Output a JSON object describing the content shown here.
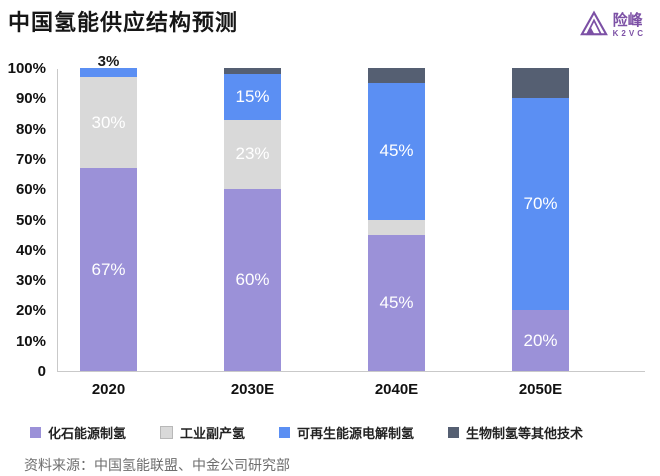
{
  "header": {
    "title": "中国氢能供应结构预测",
    "logo": {
      "name": "险峰",
      "sub": "K2VC",
      "color": "#7C50A5"
    }
  },
  "chart_data": {
    "type": "bar",
    "stacked": true,
    "title": "中国氢能供应结构预测",
    "categories": [
      "2020",
      "2030E",
      "2040E",
      "2050E"
    ],
    "series": [
      {
        "name": "化石能源制氢",
        "color": "#9B91D8",
        "values": [
          67,
          60,
          45,
          20
        ],
        "labels": [
          "67%",
          "60%",
          "45%",
          "20%"
        ]
      },
      {
        "name": "工业副产氢",
        "color": "#D9D9D9",
        "swatch_border": "#b8b8b8",
        "values": [
          30,
          23,
          5,
          0
        ],
        "labels": [
          "30%",
          "23%",
          "5%",
          ""
        ]
      },
      {
        "name": "可再生能源电解制氢",
        "color": "#5B8FF3",
        "values": [
          3,
          15,
          45,
          70
        ],
        "labels": [
          "3%",
          "15%",
          "45%",
          "70%"
        ]
      },
      {
        "name": "生物制氢等其他技术",
        "color": "#555F72",
        "values": [
          0,
          2,
          5,
          10
        ],
        "labels": [
          "",
          "",
          "",
          ""
        ]
      }
    ],
    "ylim": [
      0,
      100
    ],
    "yticks": [
      "100%",
      "90%",
      "80%",
      "70%",
      "60%",
      "50%",
      "40%",
      "30%",
      "20%",
      "10%",
      "0"
    ],
    "grid": false,
    "legend_position": "bottom",
    "axis_color": "#c9c9c9",
    "bar_label_color_inside": "#ffffff",
    "bar_label_color_outside": "#1a1a1a"
  },
  "footer": {
    "source": "资料来源：中国氢能联盟、中金公司研究部"
  }
}
